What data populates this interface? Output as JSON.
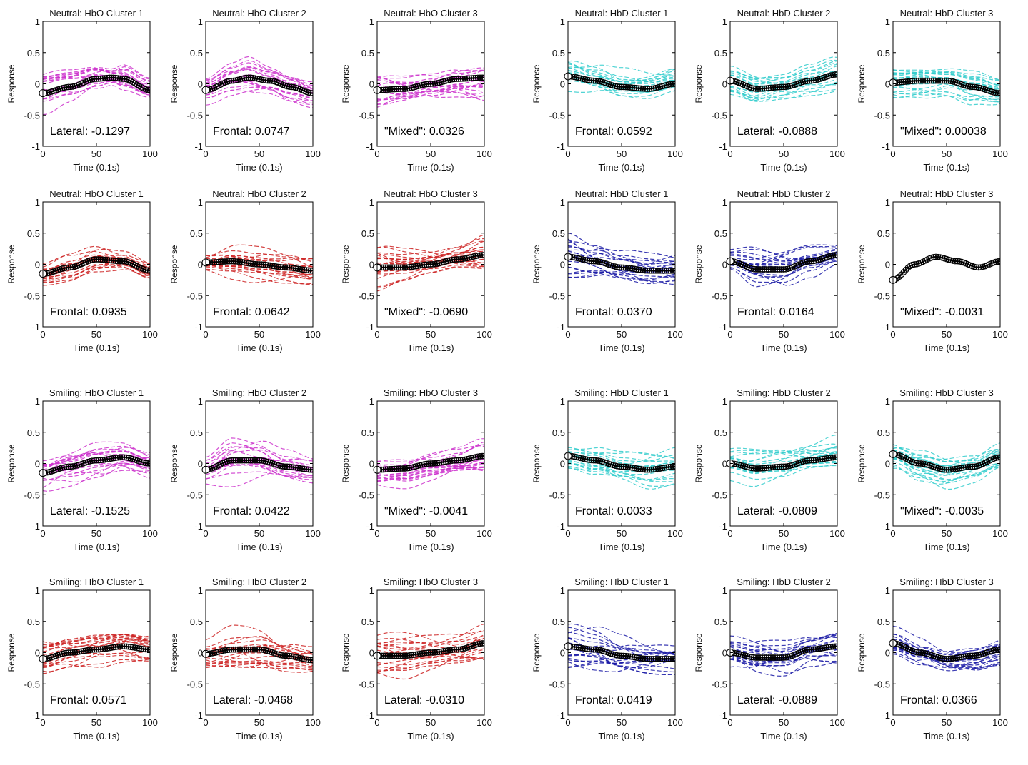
{
  "figure": {
    "xlabel": "Time (0.1s)",
    "ylabel": "Response",
    "xticks": [
      "0",
      "50",
      "100"
    ],
    "yticks": [
      "1",
      "0.5",
      "0",
      "-0.5",
      "-1"
    ]
  },
  "colors": {
    "magenta": "#cc33cc",
    "cyan": "#33cccc",
    "red": "#cc2222",
    "blue": "#1a1aa6",
    "mean": "#000000"
  },
  "chart_data": [
    {
      "type": "line",
      "title": "Neutral: HbO Cluster 1",
      "annotation": "Lateral: -0.1297",
      "color": "magenta",
      "xlabel": "Time (0.1s)",
      "ylabel": "Response",
      "xlim": [
        0,
        100
      ],
      "ylim": [
        -1,
        1
      ],
      "mean": {
        "x": [
          0,
          25,
          50,
          65,
          75,
          100
        ],
        "y": [
          -0.15,
          -0.05,
          0.08,
          0.1,
          0.08,
          -0.1
        ]
      },
      "spread": [
        0.45,
        0.35,
        0.3,
        0.2,
        0.3,
        0.25
      ]
    },
    {
      "type": "line",
      "title": "Neutral: HbO Cluster 2",
      "annotation": "Frontal: 0.0747",
      "color": "magenta",
      "xlabel": "Time (0.1s)",
      "ylabel": "Response",
      "xlim": [
        0,
        100
      ],
      "ylim": [
        -1,
        1
      ],
      "mean": {
        "x": [
          0,
          25,
          40,
          60,
          80,
          100
        ],
        "y": [
          -0.1,
          0.05,
          0.1,
          0.05,
          -0.05,
          -0.15
        ]
      },
      "spread": [
        0.3,
        0.35,
        0.4,
        0.3,
        0.3,
        0.25
      ]
    },
    {
      "type": "line",
      "title": "Neutral: HbO Cluster 3",
      "annotation": "\"Mixed\": 0.0326",
      "color": "magenta",
      "xlabel": "Time (0.1s)",
      "ylabel": "Response",
      "xlim": [
        0,
        100
      ],
      "ylim": [
        -1,
        1
      ],
      "mean": {
        "x": [
          0,
          25,
          50,
          75,
          100
        ],
        "y": [
          -0.1,
          -0.08,
          0.0,
          0.08,
          0.1
        ]
      },
      "spread": [
        0.5,
        0.35,
        0.3,
        0.35,
        0.45
      ]
    },
    {
      "type": "line",
      "title": "Neutral: HbD Cluster 1",
      "annotation": "Frontal: 0.0592",
      "color": "cyan",
      "xlabel": "Time (0.1s)",
      "ylabel": "Response",
      "xlim": [
        0,
        100
      ],
      "ylim": [
        -1,
        1
      ],
      "mean": {
        "x": [
          0,
          25,
          50,
          75,
          100
        ],
        "y": [
          0.12,
          0.05,
          -0.05,
          -0.08,
          0.0
        ]
      },
      "spread": [
        0.35,
        0.3,
        0.3,
        0.3,
        0.3
      ]
    },
    {
      "type": "line",
      "title": "Neutral: HbD Cluster 2",
      "annotation": "Lateral: -0.0888",
      "color": "cyan",
      "xlabel": "Time (0.1s)",
      "ylabel": "Response",
      "xlim": [
        0,
        100
      ],
      "ylim": [
        -1,
        1
      ],
      "mean": {
        "x": [
          0,
          25,
          50,
          75,
          100
        ],
        "y": [
          0.05,
          -0.08,
          -0.05,
          0.05,
          0.15
        ]
      },
      "spread": [
        0.3,
        0.3,
        0.25,
        0.3,
        0.4
      ]
    },
    {
      "type": "line",
      "title": "Neutral: HbD Cluster 3",
      "annotation": "\"Mixed\": 0.00038",
      "color": "cyan",
      "xlabel": "Time (0.1s)",
      "ylabel": "Response",
      "xlim": [
        0,
        100
      ],
      "ylim": [
        -1,
        1
      ],
      "mean": {
        "x": [
          0,
          25,
          50,
          75,
          100
        ],
        "y": [
          0.02,
          0.05,
          0.05,
          -0.05,
          -0.15
        ]
      },
      "spread": [
        0.35,
        0.3,
        0.25,
        0.3,
        0.3
      ]
    },
    {
      "type": "line",
      "title": "Neutral: HbO Cluster 1",
      "annotation": "Frontal: 0.0935",
      "color": "red",
      "xlabel": "Time (0.1s)",
      "ylabel": "Response",
      "xlim": [
        0,
        100
      ],
      "ylim": [
        -1,
        1
      ],
      "mean": {
        "x": [
          0,
          25,
          50,
          75,
          100
        ],
        "y": [
          -0.15,
          -0.05,
          0.08,
          0.05,
          -0.1
        ]
      },
      "spread": [
        0.2,
        0.25,
        0.25,
        0.2,
        0.2
      ]
    },
    {
      "type": "line",
      "title": "Neutral: HbO Cluster 2",
      "annotation": "Frontal: 0.0642",
      "color": "red",
      "xlabel": "Time (0.1s)",
      "ylabel": "Response",
      "xlim": [
        0,
        100
      ],
      "ylim": [
        -1,
        1
      ],
      "mean": {
        "x": [
          0,
          25,
          50,
          75,
          100
        ],
        "y": [
          0.03,
          0.05,
          0.0,
          -0.05,
          -0.1
        ]
      },
      "spread": [
        0.2,
        0.3,
        0.3,
        0.3,
        0.3
      ]
    },
    {
      "type": "line",
      "title": "Neutral: HbO Cluster 3",
      "annotation": "\"Mixed\": -0.0690",
      "color": "red",
      "xlabel": "Time (0.1s)",
      "ylabel": "Response",
      "xlim": [
        0,
        100
      ],
      "ylim": [
        -1,
        1
      ],
      "mean": {
        "x": [
          0,
          25,
          50,
          75,
          100
        ],
        "y": [
          -0.05,
          -0.05,
          0.0,
          0.08,
          0.15
        ]
      },
      "spread": [
        0.45,
        0.35,
        0.3,
        0.3,
        0.4
      ]
    },
    {
      "type": "line",
      "title": "Neutral: HbD Cluster 1",
      "annotation": "Frontal: 0.0370",
      "color": "blue",
      "xlabel": "Time (0.1s)",
      "ylabel": "Response",
      "xlim": [
        0,
        100
      ],
      "ylim": [
        -1,
        1
      ],
      "mean": {
        "x": [
          0,
          25,
          50,
          75,
          100
        ],
        "y": [
          0.12,
          0.05,
          -0.05,
          -0.1,
          -0.1
        ]
      },
      "spread": [
        0.45,
        0.35,
        0.3,
        0.3,
        0.3
      ]
    },
    {
      "type": "line",
      "title": "Neutral: HbD Cluster 2",
      "annotation": "Frontal: 0.0164",
      "color": "blue",
      "xlabel": "Time (0.1s)",
      "ylabel": "Response",
      "xlim": [
        0,
        100
      ],
      "ylim": [
        -1,
        1
      ],
      "mean": {
        "x": [
          0,
          25,
          50,
          75,
          100
        ],
        "y": [
          0.05,
          -0.08,
          -0.08,
          0.05,
          0.15
        ]
      },
      "spread": [
        0.2,
        0.4,
        0.4,
        0.3,
        0.2
      ]
    },
    {
      "type": "line",
      "title": "Neutral: HbD Cluster 3",
      "annotation": "\"Mixed\": -0.0031",
      "color": "mean",
      "xlabel": "Time (0.1s)",
      "ylabel": "Response",
      "xlim": [
        0,
        100
      ],
      "ylim": [
        -1,
        1
      ],
      "mean": {
        "x": [
          0,
          20,
          40,
          60,
          80,
          100
        ],
        "y": [
          -0.25,
          0.0,
          0.12,
          0.05,
          -0.05,
          0.05
        ]
      },
      "spread": [
        0,
        0,
        0,
        0,
        0,
        0
      ]
    },
    {
      "type": "line",
      "title": "Smiling: HbO Cluster 1",
      "annotation": "Lateral: -0.1525",
      "color": "magenta",
      "xlabel": "Time (0.1s)",
      "ylabel": "Response",
      "xlim": [
        0,
        100
      ],
      "ylim": [
        -1,
        1
      ],
      "mean": {
        "x": [
          0,
          25,
          50,
          75,
          100
        ],
        "y": [
          -0.15,
          -0.05,
          0.05,
          0.1,
          0.0
        ]
      },
      "spread": [
        0.35,
        0.35,
        0.35,
        0.3,
        0.25
      ]
    },
    {
      "type": "line",
      "title": "Smiling: HbO Cluster 2",
      "annotation": "Frontal: 0.0422",
      "color": "magenta",
      "xlabel": "Time (0.1s)",
      "ylabel": "Response",
      "xlim": [
        0,
        100
      ],
      "ylim": [
        -1,
        1
      ],
      "mean": {
        "x": [
          0,
          25,
          50,
          75,
          100
        ],
        "y": [
          -0.1,
          0.05,
          0.05,
          -0.05,
          -0.1
        ]
      },
      "spread": [
        0.3,
        0.45,
        0.4,
        0.3,
        0.25
      ]
    },
    {
      "type": "line",
      "title": "Smiling: HbO Cluster 3",
      "annotation": "\"Mixed\": -0.0041",
      "color": "magenta",
      "xlabel": "Time (0.1s)",
      "ylabel": "Response",
      "xlim": [
        0,
        100
      ],
      "ylim": [
        -1,
        1
      ],
      "mean": {
        "x": [
          0,
          25,
          50,
          75,
          100
        ],
        "y": [
          -0.1,
          -0.08,
          0.0,
          0.05,
          0.12
        ]
      },
      "spread": [
        0.3,
        0.3,
        0.3,
        0.3,
        0.4
      ]
    },
    {
      "type": "line",
      "title": "Smiling: HbD Cluster 1",
      "annotation": "Frontal: 0.0033",
      "color": "cyan",
      "xlabel": "Time (0.1s)",
      "ylabel": "Response",
      "xlim": [
        0,
        100
      ],
      "ylim": [
        -1,
        1
      ],
      "mean": {
        "x": [
          0,
          25,
          50,
          75,
          100
        ],
        "y": [
          0.12,
          0.05,
          -0.05,
          -0.1,
          -0.05
        ]
      },
      "spread": [
        0.25,
        0.3,
        0.3,
        0.35,
        0.35
      ]
    },
    {
      "type": "line",
      "title": "Smiling: HbD Cluster 2",
      "annotation": "Lateral: -0.0809",
      "color": "cyan",
      "xlabel": "Time (0.1s)",
      "ylabel": "Response",
      "xlim": [
        0,
        100
      ],
      "ylim": [
        -1,
        1
      ],
      "mean": {
        "x": [
          0,
          25,
          50,
          75,
          100
        ],
        "y": [
          0.0,
          -0.08,
          -0.05,
          0.05,
          0.1
        ]
      },
      "spread": [
        0.3,
        0.35,
        0.35,
        0.3,
        0.35
      ]
    },
    {
      "type": "line",
      "title": "Smiling: HbD Cluster 3",
      "annotation": "\"Mixed\": -0.0035",
      "color": "cyan",
      "xlabel": "Time (0.1s)",
      "ylabel": "Response",
      "xlim": [
        0,
        100
      ],
      "ylim": [
        -1,
        1
      ],
      "mean": {
        "x": [
          0,
          25,
          50,
          75,
          100
        ],
        "y": [
          0.15,
          0.0,
          -0.1,
          -0.05,
          0.1
        ]
      },
      "spread": [
        0.3,
        0.35,
        0.35,
        0.3,
        0.3
      ]
    },
    {
      "type": "line",
      "title": "Smiling: HbO Cluster 1",
      "annotation": "Frontal: 0.0571",
      "color": "red",
      "xlabel": "Time (0.1s)",
      "ylabel": "Response",
      "xlim": [
        0,
        100
      ],
      "ylim": [
        -1,
        1
      ],
      "mean": {
        "x": [
          0,
          25,
          50,
          75,
          100
        ],
        "y": [
          -0.1,
          0.0,
          0.05,
          0.1,
          0.05
        ]
      },
      "spread": [
        0.4,
        0.4,
        0.4,
        0.35,
        0.3
      ]
    },
    {
      "type": "line",
      "title": "Smiling: HbO Cluster 2",
      "annotation": "Lateral: -0.0468",
      "color": "red",
      "xlabel": "Time (0.1s)",
      "ylabel": "Response",
      "xlim": [
        0,
        100
      ],
      "ylim": [
        -1,
        1
      ],
      "mean": {
        "x": [
          0,
          25,
          50,
          75,
          100
        ],
        "y": [
          -0.02,
          0.05,
          0.05,
          -0.05,
          -0.12
        ]
      },
      "spread": [
        0.35,
        0.45,
        0.45,
        0.35,
        0.3
      ]
    },
    {
      "type": "line",
      "title": "Smiling: HbO Cluster 3",
      "annotation": "Lateral: -0.0310",
      "color": "red",
      "xlabel": "Time (0.1s)",
      "ylabel": "Response",
      "xlim": [
        0,
        100
      ],
      "ylim": [
        -1,
        1
      ],
      "mean": {
        "x": [
          0,
          25,
          50,
          75,
          100
        ],
        "y": [
          -0.05,
          -0.05,
          0.0,
          0.05,
          0.15
        ]
      },
      "spread": [
        0.4,
        0.4,
        0.35,
        0.35,
        0.4
      ]
    },
    {
      "type": "line",
      "title": "Smiling: HbD Cluster 1",
      "annotation": "Frontal: 0.0419",
      "color": "blue",
      "xlabel": "Time (0.1s)",
      "ylabel": "Response",
      "xlim": [
        0,
        100
      ],
      "ylim": [
        -1,
        1
      ],
      "mean": {
        "x": [
          0,
          25,
          50,
          75,
          100
        ],
        "y": [
          0.1,
          0.05,
          -0.05,
          -0.1,
          -0.1
        ]
      },
      "spread": [
        0.45,
        0.4,
        0.35,
        0.3,
        0.3
      ]
    },
    {
      "type": "line",
      "title": "Smiling: HbD Cluster 2",
      "annotation": "Lateral: -0.0889",
      "color": "blue",
      "xlabel": "Time (0.1s)",
      "ylabel": "Response",
      "xlim": [
        0,
        100
      ],
      "ylim": [
        -1,
        1
      ],
      "mean": {
        "x": [
          0,
          25,
          50,
          75,
          100
        ],
        "y": [
          0.0,
          -0.08,
          -0.08,
          0.05,
          0.1
        ]
      },
      "spread": [
        0.3,
        0.35,
        0.35,
        0.3,
        0.35
      ]
    },
    {
      "type": "line",
      "title": "Smiling: HbD Cluster 3",
      "annotation": "Frontal: 0.0366",
      "color": "blue",
      "xlabel": "Time (0.1s)",
      "ylabel": "Response",
      "xlim": [
        0,
        100
      ],
      "ylim": [
        -1,
        1
      ],
      "mean": {
        "x": [
          0,
          25,
          50,
          75,
          100
        ],
        "y": [
          0.15,
          0.0,
          -0.1,
          -0.05,
          0.05
        ]
      },
      "spread": [
        0.3,
        0.35,
        0.3,
        0.3,
        0.3
      ]
    }
  ]
}
